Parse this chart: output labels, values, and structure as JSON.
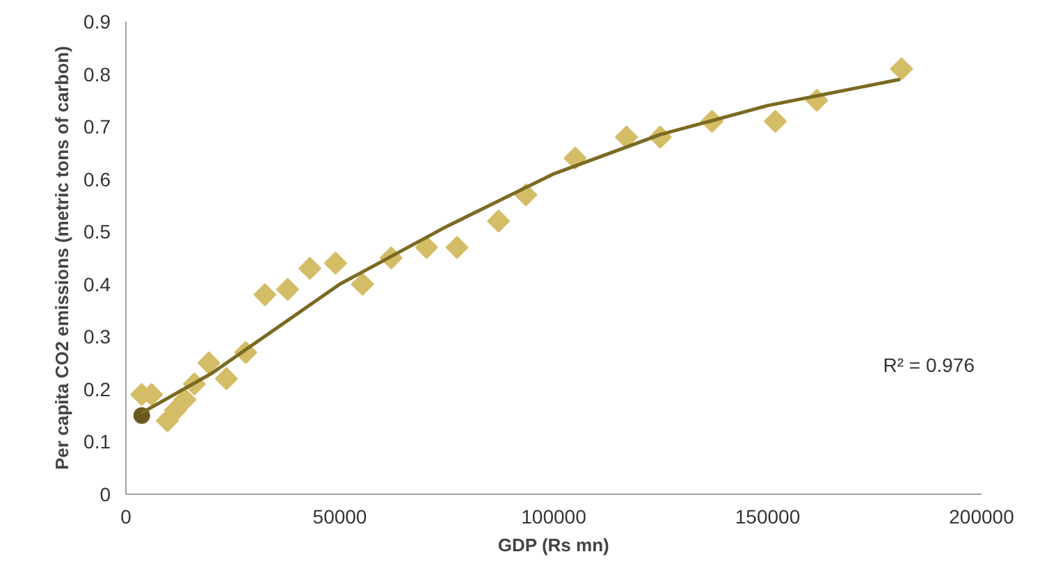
{
  "chart_data": {
    "type": "scatter",
    "xlabel": "GDP (Rs mn)",
    "ylabel": "Per capita CO2 emissions (metric tons of carbon)",
    "xlim": [
      0,
      200000
    ],
    "xticks": [
      0,
      50000,
      100000,
      150000,
      200000
    ],
    "ylim": [
      0,
      0.9
    ],
    "yticks": [
      0,
      0.1,
      0.2,
      0.3,
      0.4,
      0.5,
      0.6,
      0.7,
      0.8,
      0.9
    ],
    "grid": false,
    "annotations": [
      "R² = 0.976"
    ],
    "series": [
      {
        "color": "#d4bd67",
        "marker": "diamond",
        "x": [
          3700,
          6000,
          9700,
          11600,
          13800,
          16000,
          19400,
          23500,
          28000,
          32500,
          37800,
          43000,
          49000,
          55300,
          62000,
          70300,
          77400,
          87100,
          93500,
          105000,
          117000,
          124900,
          137000,
          151800,
          161500,
          181300
        ],
        "values": [
          0.19,
          0.19,
          0.14,
          0.16,
          0.18,
          0.21,
          0.25,
          0.22,
          0.27,
          0.38,
          0.39,
          0.43,
          0.44,
          0.4,
          0.45,
          0.47,
          0.47,
          0.52,
          0.57,
          0.64,
          0.68,
          0.68,
          0.71,
          0.71,
          0.75,
          0.81
        ]
      },
      {
        "color": "#6b5a1e",
        "marker": "circle",
        "x": [
          3700
        ],
        "values": [
          0.15
        ]
      },
      {
        "type": "line",
        "color": "#7a6a22",
        "marker": "none",
        "line_style": "solid",
        "x": [
          3700,
          20000,
          50000,
          75000,
          100000,
          125000,
          150000,
          181000
        ],
        "values": [
          0.155,
          0.23,
          0.4,
          0.51,
          0.61,
          0.685,
          0.74,
          0.79
        ]
      }
    ]
  }
}
